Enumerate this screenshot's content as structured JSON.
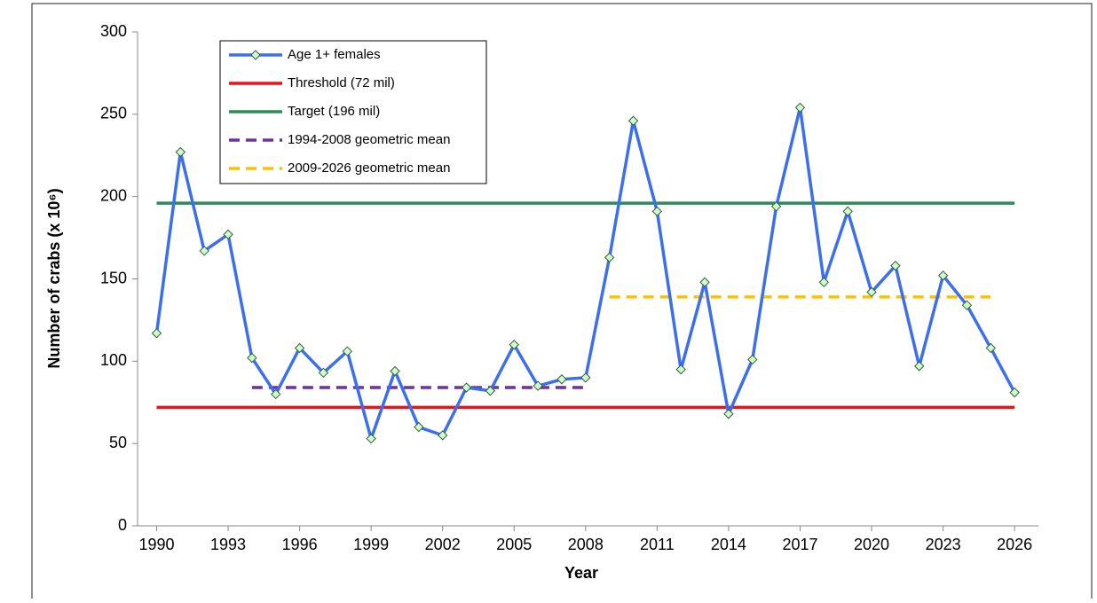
{
  "chart_data": {
    "type": "line",
    "x_label": "Year",
    "y_label": "Number of crabs (x 10⁶)",
    "x": [
      1990,
      1991,
      1992,
      1993,
      1994,
      1995,
      1996,
      1997,
      1998,
      1999,
      2000,
      2001,
      2002,
      2003,
      2004,
      2005,
      2006,
      2007,
      2008,
      2009,
      2010,
      2011,
      2012,
      2013,
      2014,
      2015,
      2016,
      2017,
      2018,
      2019,
      2020,
      2021,
      2022,
      2023,
      2024,
      2025,
      2026
    ],
    "series": [
      {
        "name": "Age 1+ females",
        "color": "#3b6ff0",
        "marker": "diamond",
        "values": [
          117,
          227,
          167,
          177,
          102,
          80,
          108,
          93,
          106,
          53,
          94,
          60,
          55,
          84,
          82,
          110,
          85,
          89,
          90,
          163,
          246,
          191,
          95,
          148,
          68,
          101,
          194,
          254,
          148,
          191,
          142,
          158,
          97,
          152,
          134,
          108,
          81
        ]
      },
      {
        "name": "Threshold (72 mil)",
        "color": "#e8141c",
        "x": [
          1990,
          2026
        ],
        "values": [
          72,
          72
        ]
      },
      {
        "name": "Target (196 mil)",
        "color": "#2e8b57",
        "x": [
          1990,
          2026
        ],
        "values": [
          196,
          196
        ]
      },
      {
        "name": "1994-2008 geometric mean",
        "color": "#7030a0",
        "dashed": true,
        "x": [
          1994,
          2008
        ],
        "values": [
          84,
          84
        ]
      },
      {
        "name": "2009-2026 geometric mean",
        "color": "#ffc000",
        "dashed": true,
        "x": [
          2009,
          2025
        ],
        "values": [
          139,
          139
        ]
      }
    ],
    "xlim": [
      1989.2,
      2027
    ],
    "xticks": [
      1990,
      1993,
      1996,
      1999,
      2002,
      2005,
      2008,
      2011,
      2014,
      2017,
      2020,
      2023,
      2026
    ],
    "ylim": [
      0,
      300
    ],
    "yticks": [
      0,
      50,
      100,
      150,
      200,
      250,
      300
    ],
    "legend": "top-left"
  }
}
